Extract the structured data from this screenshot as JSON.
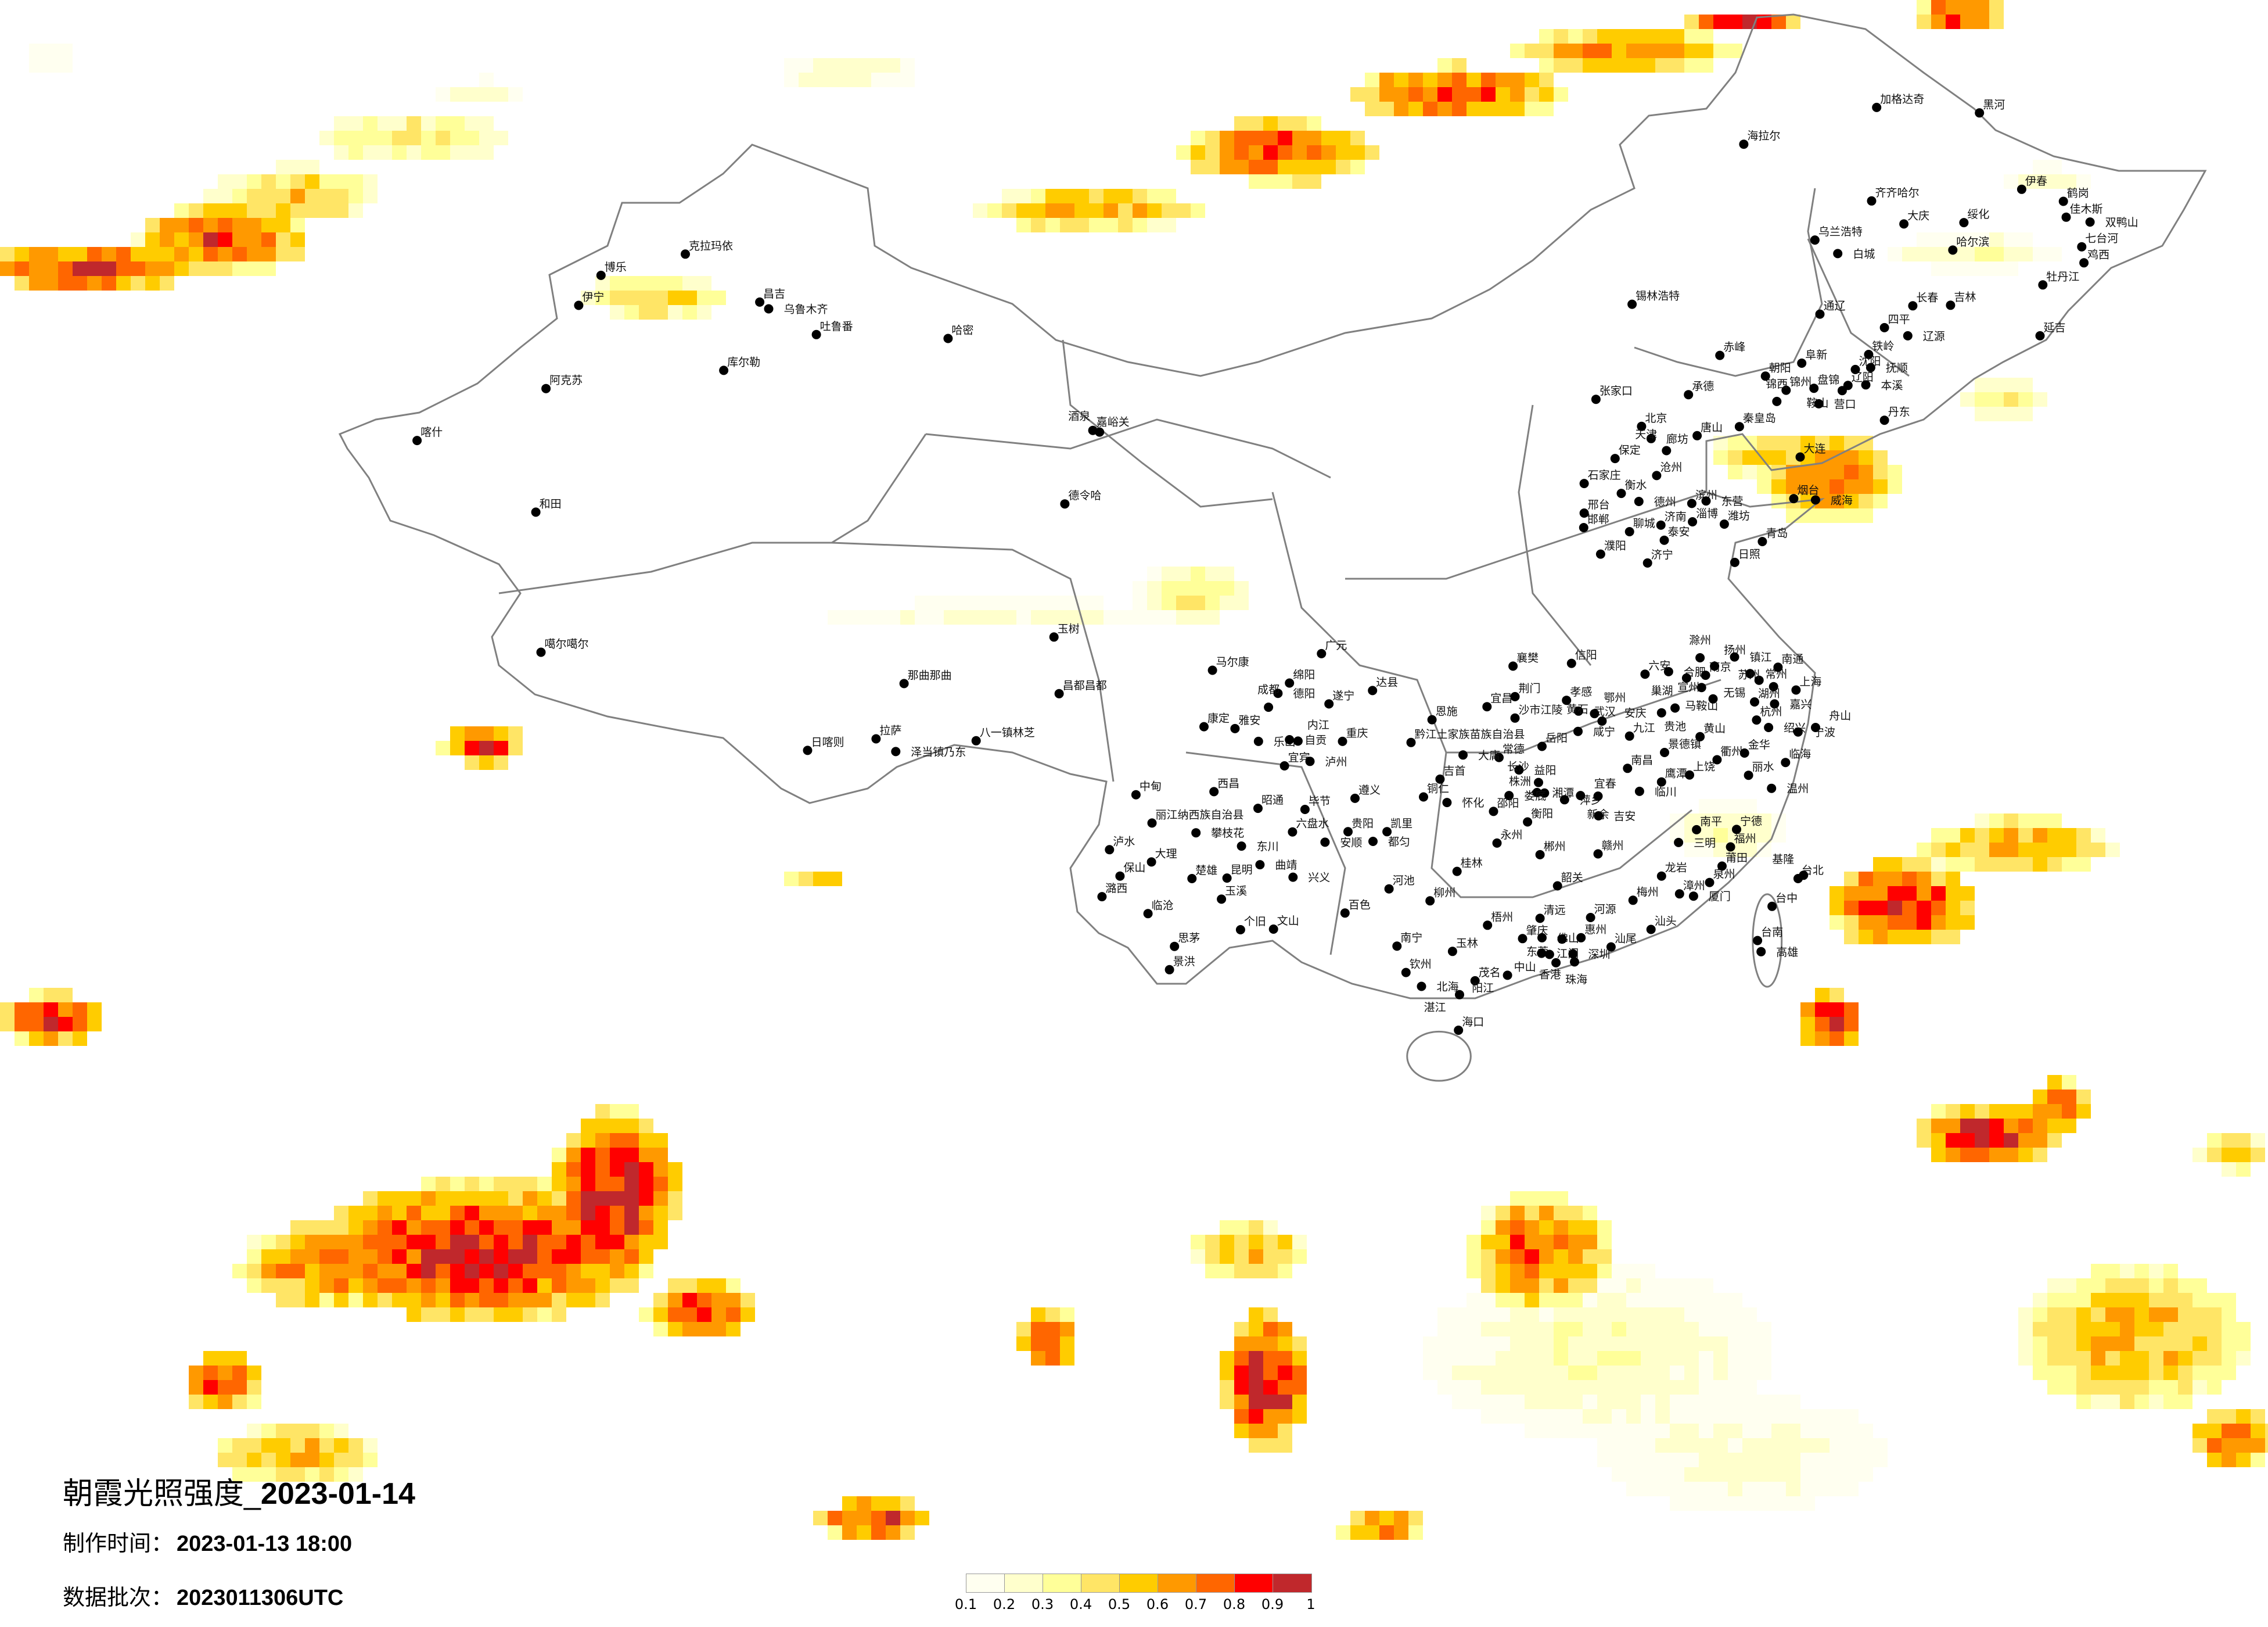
{
  "title": {
    "main": "朝霞光照强度_",
    "date": "2023-01-14"
  },
  "production_time": {
    "label": "制作时间：",
    "value": "2023-01-13 18:00"
  },
  "data_batch": {
    "label": "数据批次：",
    "value": "2023011306UTC"
  },
  "legend": {
    "labels": [
      "0.1",
      "0.2",
      "0.3",
      "0.4",
      "0.5",
      "0.6",
      "0.7",
      "0.8",
      "0.9",
      "1"
    ],
    "colors": [
      "#FFFFF0",
      "#FFFFCC",
      "#FFFF99",
      "#FFE566",
      "#FFCC00",
      "#FF9900",
      "#FF6600",
      "#FF0000",
      "#C0282C"
    ]
  },
  "map": {
    "boundary_color": "#808080",
    "city_dot_color": "#000000"
  },
  "cities": [
    "克拉玛依",
    "博乐",
    "伊宁",
    "昌吉",
    "乌鲁木齐",
    "吐鲁番",
    "哈密",
    "库尔勒",
    "阿克苏",
    "喀什",
    "和田",
    "德令哈",
    "嘉峪关",
    "酒泉",
    "玉树",
    "噶尔噶尔",
    "那曲那曲",
    "昌都昌都",
    "日喀则",
    "拉萨",
    "泽当镇乃东",
    "八一镇林芝",
    "加格达奇",
    "黑河",
    "海拉尔",
    "齐齐哈尔",
    "伊春",
    "鹤岗",
    "佳木斯",
    "双鸭山",
    "大庆",
    "绥化",
    "乌兰浩特",
    "白城",
    "哈尔滨",
    "七台河",
    "鸡西",
    "牡丹江",
    "锡林浩特",
    "通辽",
    "长春",
    "吉林",
    "四平",
    "辽源",
    "延吉",
    "赤峰",
    "阜新",
    "铁岭",
    "沈阳",
    "抚顺",
    "朝阳",
    "锦州",
    "盘锦",
    "辽阳",
    "鞍山",
    "本溪",
    "张家口",
    "承德",
    "锦西",
    "营口",
    "丹东",
    "北京",
    "秦皇岛",
    "唐山",
    "廊坊",
    "天津",
    "大连",
    "保定",
    "沧州",
    "石家庄",
    "衡水",
    "德州",
    "滨州",
    "东营",
    "烟台",
    "威海",
    "邢台",
    "淄博",
    "济南",
    "潍坊",
    "邯郸",
    "聊城",
    "泰安",
    "青岛",
    "濮阳",
    "济宁",
    "日照",
    "马尔康",
    "绵阳",
    "德阳",
    "成都",
    "遂宁",
    "达县",
    "康定",
    "雅安",
    "乐山",
    "自贡",
    "内江",
    "重庆",
    "宜宾",
    "泸州",
    "广元",
    "恩施",
    "黔江土家族苗族自治县",
    "宜昌",
    "荆门",
    "沙市江陵",
    "襄樊",
    "信阳",
    "孝感",
    "武汉",
    "鄂州",
    "黄石",
    "咸宁",
    "九江",
    "六安",
    "合肥",
    "巢湖",
    "南京",
    "扬州",
    "滁州",
    "镇江",
    "常州",
    "南通",
    "无锡",
    "马鞍山",
    "宣州",
    "苏州",
    "上海",
    "湖州",
    "嘉兴",
    "安庆",
    "贵池",
    "杭州",
    "绍兴",
    "宁波",
    "舟山",
    "黄山",
    "景德镇",
    "衢州",
    "金华",
    "临海",
    "丽水",
    "上饶",
    "温州",
    "鹰潭",
    "南昌",
    "临川",
    "岳阳",
    "常德",
    "大庸",
    "益阳",
    "长沙",
    "湘潭",
    "株洲",
    "萍乡",
    "宜春",
    "新余",
    "吉安",
    "娄底",
    "吉首",
    "铜仁",
    "怀化",
    "邵阳",
    "衡阳",
    "永州",
    "郴州",
    "赣州",
    "韶关",
    "南平",
    "三明",
    "宁德",
    "福州",
    "莆田",
    "泉州",
    "龙岩",
    "漳州",
    "厦门",
    "梅州",
    "汕头",
    "台北",
    "基隆",
    "台中",
    "台南",
    "高雄",
    "中甸",
    "西昌",
    "昭通",
    "毕节",
    "遵义",
    "丽江纳西族自治县",
    "攀枝花",
    "六盘水",
    "贵阳",
    "凯里",
    "安顺",
    "都匀",
    "东川",
    "泸水",
    "大理",
    "保山",
    "曲靖",
    "楚雄",
    "昆明",
    "兴义",
    "潞西",
    "玉溪",
    "临沧",
    "河池",
    "柳州",
    "桂林",
    "百色",
    "个旧",
    "文山",
    "思茅",
    "景洪",
    "南宁",
    "玉林",
    "梧州",
    "清远",
    "河源",
    "肇庆",
    "佛山",
    "东莞",
    "惠州",
    "汕尾",
    "江门",
    "中山",
    "深圳",
    "香港",
    "珠海",
    "钦州",
    "北海",
    "茂名",
    "阳江",
    "湛江",
    "海口"
  ]
}
